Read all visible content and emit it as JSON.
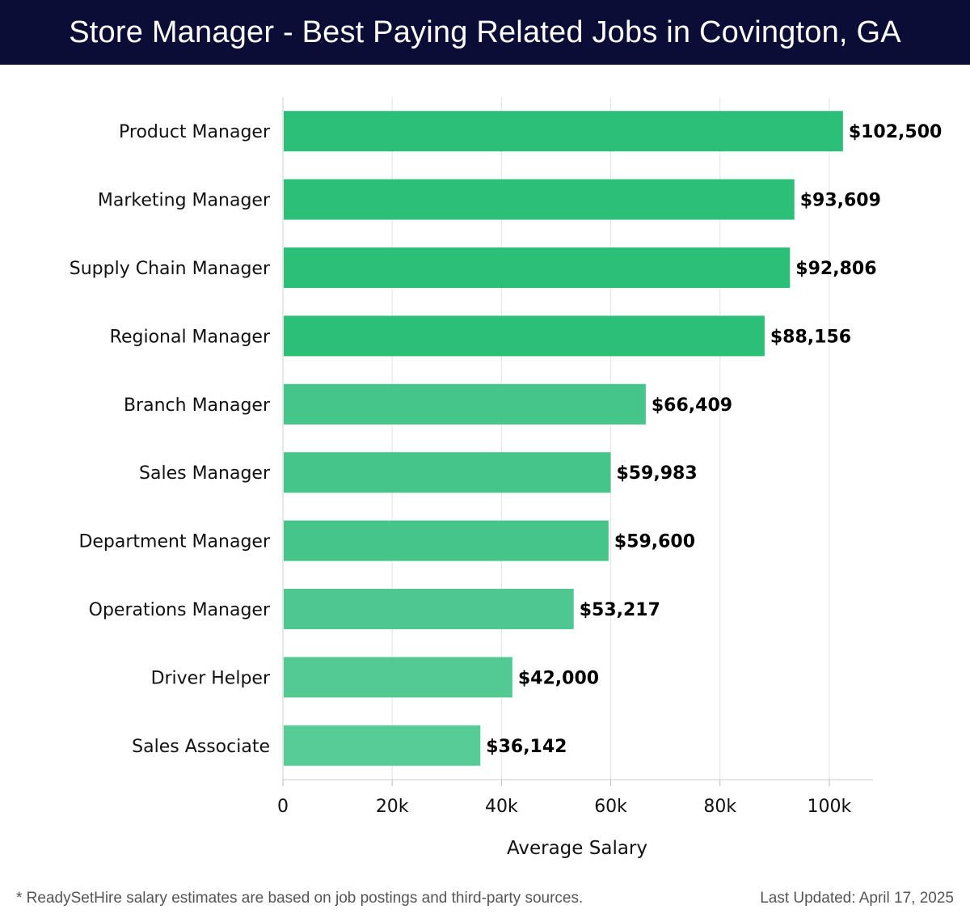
{
  "header": {
    "title": "Store Manager - Best Paying Related Jobs in Covington, GA"
  },
  "chart_data": {
    "type": "bar",
    "orientation": "horizontal",
    "categories": [
      "Product Manager",
      "Marketing Manager",
      "Supply Chain Manager",
      "Regional Manager",
      "Branch Manager",
      "Sales Manager",
      "Department Manager",
      "Operations Manager",
      "Driver Helper",
      "Sales Associate"
    ],
    "values": [
      102500,
      93609,
      92806,
      88156,
      66409,
      59983,
      59600,
      53217,
      42000,
      36142
    ],
    "value_labels": [
      "$102,500",
      "$93,609",
      "$92,806",
      "$88,156",
      "$66,409",
      "$59,983",
      "$59,600",
      "$53,217",
      "$42,000",
      "$36,142"
    ],
    "bar_colors": [
      "#2cbf78",
      "#2cbf78",
      "#2cbf78",
      "#2cbf78",
      "#46c58a",
      "#46c58a",
      "#46c58a",
      "#4ec890",
      "#53ca93",
      "#58cc96"
    ],
    "xlabel": "Average Salary",
    "ylabel": "",
    "xlim": [
      0,
      108000
    ],
    "x_ticks": [
      0,
      20000,
      40000,
      60000,
      80000,
      100000
    ],
    "x_tick_labels": [
      "0",
      "20k",
      "40k",
      "60k",
      "80k",
      "100k"
    ],
    "grid": true
  },
  "footer": {
    "note": "* ReadySetHire salary estimates are based on job postings and third-party sources.",
    "updated": "Last Updated: April 17, 2025"
  },
  "colors": {
    "header_bg": "#0b0d36",
    "bar": "#2cbf78",
    "grid": "#e3e3e3"
  }
}
